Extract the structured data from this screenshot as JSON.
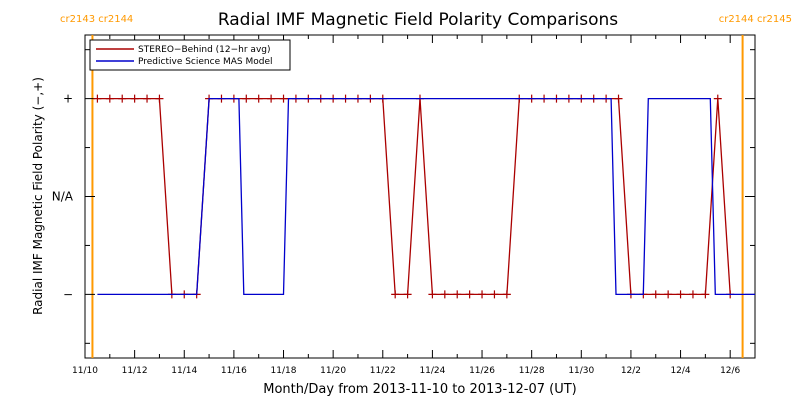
{
  "chart_data": {
    "type": "line",
    "title": "Radial IMF Magnetic Field Polarity Comparisons",
    "xlabel": "Month/Day from 2013-11-10 to 2013-12-07 (UT)",
    "ylabel": "Radial IMF Magnetic Field Polarity (−,+)",
    "x_ticks": [
      "11/10",
      "11/12",
      "11/14",
      "11/16",
      "11/18",
      "11/20",
      "11/22",
      "11/24",
      "11/26",
      "11/28",
      "11/30",
      "12/2",
      "12/4",
      "12/6"
    ],
    "y_ticks": [
      "−",
      "N/A",
      "+"
    ],
    "xlim": [
      0,
      27
    ],
    "ylim": [
      -1.65,
      1.65
    ],
    "grid": false,
    "legend_position": "top-left",
    "carrington_labels": [
      {
        "text": "cr2143 cr2144",
        "at": 0.3,
        "side": "left"
      },
      {
        "text": "cr2144 cr2145",
        "at": 26.5,
        "side": "right"
      }
    ],
    "series": [
      {
        "name": "STEREO−Behind (12−hr avg)",
        "color": "#aa0000",
        "marker": "plus",
        "points": [
          [
            0.5,
            1
          ],
          [
            1.0,
            1
          ],
          [
            1.5,
            1
          ],
          [
            2.0,
            1
          ],
          [
            2.5,
            1
          ],
          [
            3.0,
            1
          ],
          [
            3.5,
            -1
          ],
          [
            4.0,
            -1
          ],
          [
            4.5,
            -1
          ],
          [
            5.0,
            1
          ],
          [
            5.5,
            1
          ],
          [
            6.0,
            1
          ],
          [
            6.5,
            1
          ],
          [
            7.0,
            1
          ],
          [
            7.5,
            1
          ],
          [
            8.0,
            1
          ],
          [
            8.5,
            1
          ],
          [
            9.0,
            1
          ],
          [
            9.5,
            1
          ],
          [
            10.0,
            1
          ],
          [
            10.5,
            1
          ],
          [
            11.0,
            1
          ],
          [
            11.5,
            1
          ],
          [
            12.0,
            1
          ],
          [
            12.5,
            -1
          ],
          [
            13.0,
            -1
          ],
          [
            13.5,
            1
          ],
          [
            14.0,
            -1
          ],
          [
            14.5,
            -1
          ],
          [
            15.0,
            -1
          ],
          [
            15.5,
            -1
          ],
          [
            16.0,
            -1
          ],
          [
            16.5,
            -1
          ],
          [
            17.0,
            -1
          ],
          [
            17.5,
            1
          ],
          [
            18.0,
            1
          ],
          [
            18.5,
            1
          ],
          [
            19.0,
            1
          ],
          [
            19.5,
            1
          ],
          [
            20.0,
            1
          ],
          [
            20.5,
            1
          ],
          [
            21.0,
            1
          ],
          [
            21.5,
            1
          ],
          [
            22.0,
            -1
          ],
          [
            22.5,
            -1
          ],
          [
            23.0,
            -1
          ],
          [
            23.5,
            -1
          ],
          [
            24.0,
            -1
          ],
          [
            24.5,
            -1
          ],
          [
            25.0,
            -1
          ],
          [
            25.5,
            1
          ],
          [
            26.0,
            -1
          ]
        ]
      },
      {
        "name": "Predictive Science MAS Model",
        "color": "#0000cc",
        "marker": "none",
        "points": [
          [
            0.5,
            -1
          ],
          [
            4.5,
            -1
          ],
          [
            5.0,
            1
          ],
          [
            6.2,
            1
          ],
          [
            6.4,
            -1
          ],
          [
            8.0,
            -1
          ],
          [
            8.2,
            1
          ],
          [
            21.2,
            1
          ],
          [
            21.4,
            -1
          ],
          [
            22.5,
            -1
          ],
          [
            22.7,
            1
          ],
          [
            25.2,
            1
          ],
          [
            25.4,
            -1
          ],
          [
            27.0,
            -1
          ]
        ]
      }
    ]
  }
}
